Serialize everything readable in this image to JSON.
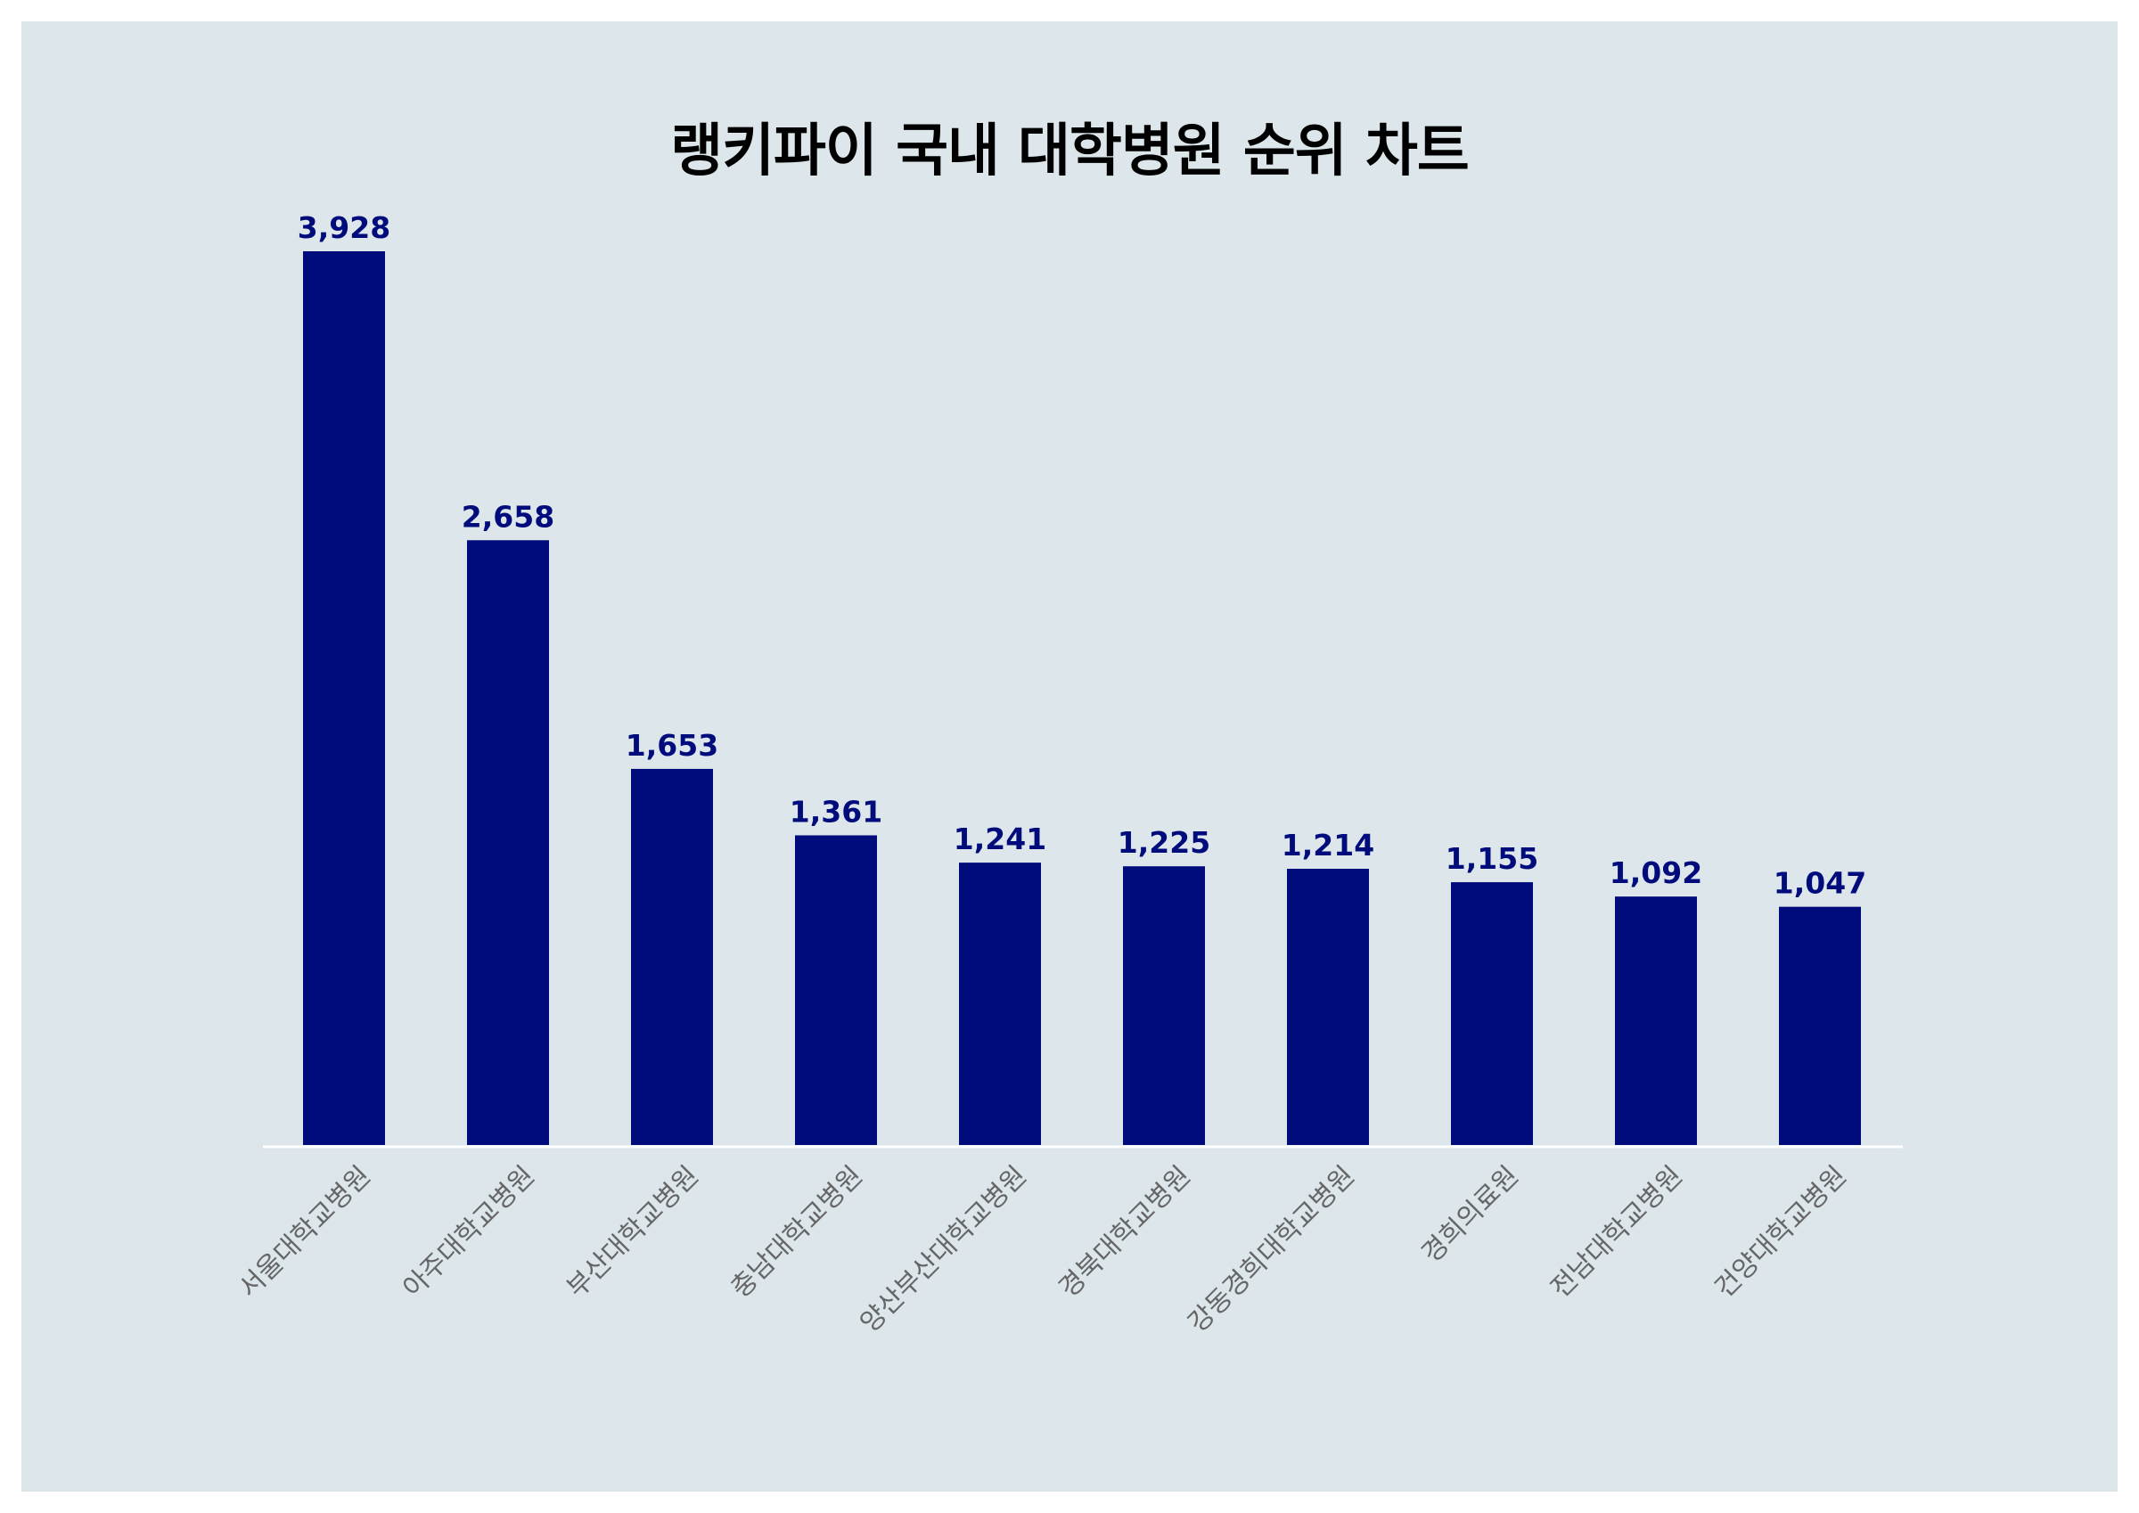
{
  "chart_data": {
    "type": "bar",
    "title": "랭키파이 국내 대학병원 순위 차트",
    "xlabel": "",
    "ylabel": "",
    "categories": [
      "서울대학교병원",
      "아주대학교병원",
      "부산대학교병원",
      "충남대학교병원",
      "양산부산대학교병원",
      "경북대학교병원",
      "강동경희대학교병원",
      "경희의료원",
      "전남대학교병원",
      "건양대학교병원"
    ],
    "values": [
      3928,
      2658,
      1653,
      1361,
      1241,
      1225,
      1214,
      1155,
      1092,
      1047
    ],
    "value_labels": [
      "3,928",
      "2,658",
      "1,653",
      "1,361",
      "1,241",
      "1,225",
      "1,214",
      "1,155",
      "1,092",
      "1,047"
    ],
    "ylim": [
      0,
      3928
    ],
    "grid": false,
    "legend": "none",
    "colors": {
      "bar": "#000c7b",
      "value_label": "#000c7b",
      "tick_label": "#666666",
      "baseline": "#ffffff",
      "background": "#dce6eb"
    }
  }
}
